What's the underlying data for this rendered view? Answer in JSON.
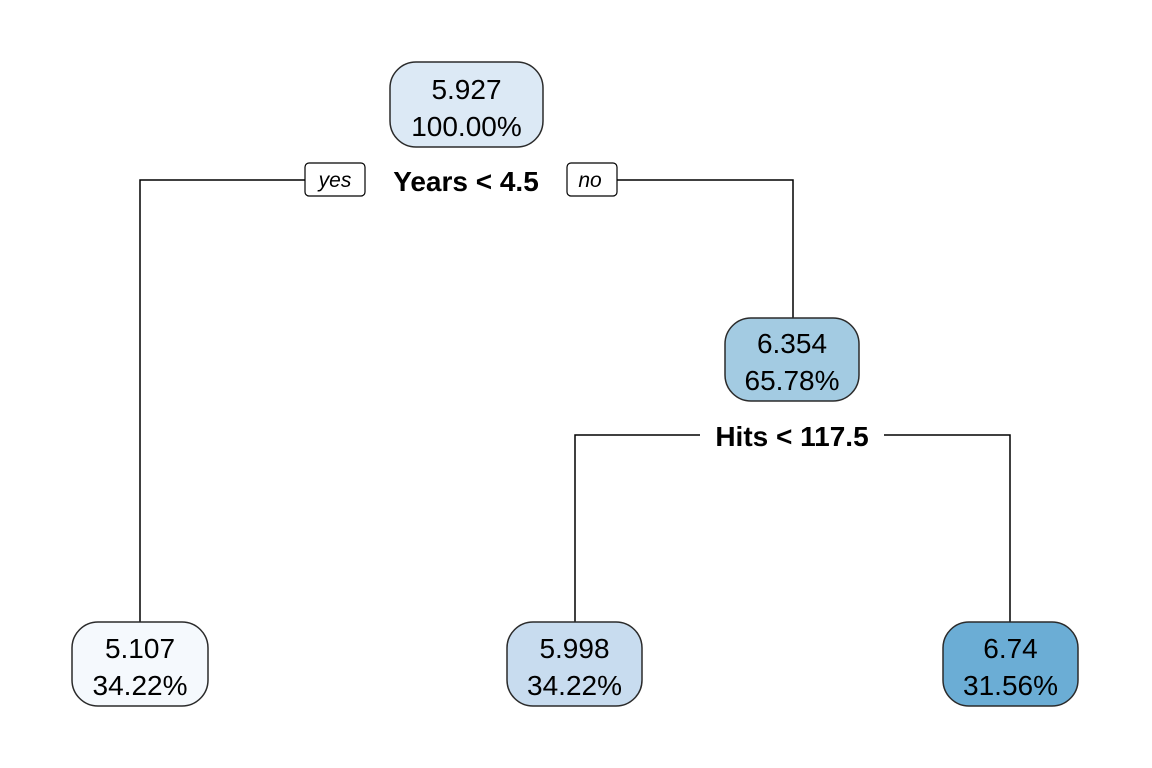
{
  "tree": {
    "nodes": [
      {
        "id": "root",
        "value": "5.927",
        "percent": "100.00%",
        "fill": "#dce9f5"
      },
      {
        "id": "n2",
        "value": "5.107",
        "percent": "34.22%",
        "fill": "#f5f9fd"
      },
      {
        "id": "n3",
        "value": "6.354",
        "percent": "65.78%",
        "fill": "#a3cbe2"
      },
      {
        "id": "n6",
        "value": "5.998",
        "percent": "34.22%",
        "fill": "#c8dcef"
      },
      {
        "id": "n7",
        "value": "6.74",
        "percent": "31.56%",
        "fill": "#6badd5"
      }
    ],
    "splits": [
      {
        "id": "split-years",
        "label": "Years < 4.5"
      },
      {
        "id": "split-hits",
        "label": "Hits < 117.5"
      }
    ],
    "branch_labels": {
      "yes": "yes",
      "no": "no"
    }
  }
}
